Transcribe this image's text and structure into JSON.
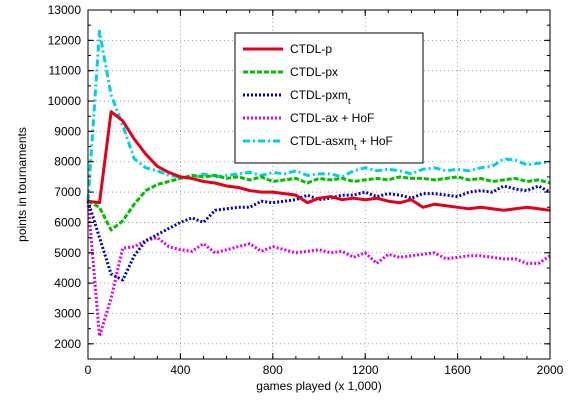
{
  "chart_data": {
    "type": "line",
    "xlabel": "games played (x 1,000)",
    "ylabel": "points in tournaments",
    "xlim": [
      0,
      2000
    ],
    "ylim": [
      1500,
      13000
    ],
    "xticks": [
      0,
      400,
      800,
      1200,
      1600,
      2000
    ],
    "yticks": [
      2000,
      3000,
      4000,
      5000,
      6000,
      7000,
      8000,
      9000,
      10000,
      11000,
      12000,
      13000
    ],
    "grid": true,
    "legend_position": "top-right",
    "series": [
      {
        "name": "CTDL-p",
        "legend_main": "CTDL-p",
        "legend_sub": "",
        "legend_tail": "",
        "color": "#e3001b",
        "dash": "solid",
        "x": [
          0,
          50,
          100,
          150,
          200,
          250,
          300,
          350,
          400,
          450,
          500,
          550,
          600,
          650,
          700,
          750,
          800,
          850,
          900,
          950,
          1000,
          1050,
          1100,
          1150,
          1200,
          1250,
          1300,
          1350,
          1400,
          1450,
          1500,
          1550,
          1600,
          1650,
          1700,
          1750,
          1800,
          1850,
          1900,
          1950,
          2000
        ],
        "y": [
          6700,
          6650,
          9650,
          9350,
          8750,
          8250,
          7850,
          7650,
          7500,
          7450,
          7350,
          7300,
          7200,
          7150,
          7050,
          7000,
          7000,
          6950,
          6900,
          6650,
          6800,
          6850,
          6750,
          6800,
          6750,
          6800,
          6700,
          6650,
          6750,
          6500,
          6600,
          6550,
          6500,
          6450,
          6500,
          6450,
          6400,
          6450,
          6500,
          6450,
          6400
        ]
      },
      {
        "name": "CTDL-px",
        "legend_main": "CTDL-px",
        "legend_sub": "",
        "legend_tail": "",
        "color": "#00c000",
        "dash": "dashed",
        "x": [
          0,
          50,
          100,
          150,
          200,
          250,
          300,
          350,
          400,
          450,
          500,
          550,
          600,
          650,
          700,
          750,
          800,
          850,
          900,
          950,
          1000,
          1050,
          1100,
          1150,
          1200,
          1250,
          1300,
          1350,
          1400,
          1450,
          1500,
          1550,
          1600,
          1650,
          1700,
          1750,
          1800,
          1850,
          1900,
          1950,
          2000
        ],
        "y": [
          6700,
          6500,
          5750,
          6050,
          6600,
          7050,
          7250,
          7350,
          7450,
          7550,
          7500,
          7550,
          7450,
          7500,
          7400,
          7500,
          7350,
          7400,
          7450,
          7300,
          7450,
          7400,
          7450,
          7350,
          7400,
          7450,
          7400,
          7500,
          7450,
          7450,
          7400,
          7450,
          7500,
          7400,
          7450,
          7350,
          7400,
          7450,
          7350,
          7400,
          7300
        ]
      },
      {
        "name": "CTDL-pxmt",
        "legend_main": "CTDL-pxm",
        "legend_sub": "t",
        "legend_tail": "",
        "color": "#0000c8",
        "dash": "dotted",
        "x": [
          0,
          50,
          100,
          150,
          200,
          250,
          300,
          350,
          400,
          450,
          500,
          550,
          600,
          650,
          700,
          750,
          800,
          850,
          900,
          950,
          1000,
          1050,
          1100,
          1150,
          1200,
          1250,
          1300,
          1350,
          1400,
          1450,
          1500,
          1550,
          1600,
          1650,
          1700,
          1750,
          1800,
          1850,
          1900,
          1950,
          2000
        ],
        "y": [
          6700,
          5500,
          4300,
          4100,
          4900,
          5400,
          5600,
          5800,
          6000,
          6150,
          6000,
          6400,
          6450,
          6500,
          6500,
          6700,
          6650,
          6700,
          6750,
          6900,
          6750,
          6800,
          6900,
          6900,
          7000,
          6850,
          6950,
          6900,
          6800,
          6950,
          6950,
          6900,
          6850,
          7000,
          7050,
          7000,
          7200,
          7100,
          7050,
          7200,
          7000
        ]
      },
      {
        "name": "CTDL-ax + HoF",
        "legend_main": "CTDL-ax + HoF",
        "legend_sub": "",
        "legend_tail": "",
        "color": "#e000e0",
        "dash": "dotted",
        "x": [
          0,
          50,
          100,
          150,
          200,
          250,
          300,
          350,
          400,
          450,
          500,
          550,
          600,
          650,
          700,
          750,
          800,
          850,
          900,
          950,
          1000,
          1050,
          1100,
          1150,
          1200,
          1250,
          1300,
          1350,
          1400,
          1450,
          1500,
          1550,
          1600,
          1650,
          1700,
          1750,
          1800,
          1850,
          1900,
          1950,
          2000
        ],
        "y": [
          6700,
          2250,
          3500,
          5150,
          5200,
          5400,
          5500,
          5200,
          5100,
          5050,
          5300,
          5000,
          5100,
          5200,
          5300,
          5050,
          5200,
          5100,
          5000,
          5050,
          5100,
          5000,
          5050,
          4850,
          5000,
          4650,
          4950,
          4850,
          4900,
          4950,
          5000,
          4800,
          4850,
          4900,
          4900,
          4850,
          4800,
          4800,
          4650,
          4650,
          4900
        ]
      },
      {
        "name": "CTDL-asxmt + HoF",
        "legend_main": "CTDL-asxm",
        "legend_sub": "t",
        "legend_tail": " + HoF",
        "color": "#00d0e0",
        "dash": "dashdot",
        "x": [
          0,
          50,
          100,
          150,
          200,
          250,
          300,
          350,
          400,
          450,
          500,
          550,
          600,
          650,
          700,
          750,
          800,
          850,
          900,
          950,
          1000,
          1050,
          1100,
          1150,
          1200,
          1250,
          1300,
          1350,
          1400,
          1450,
          1500,
          1550,
          1600,
          1650,
          1700,
          1750,
          1800,
          1850,
          1900,
          1950,
          2000
        ],
        "y": [
          6700,
          12300,
          10200,
          9200,
          8100,
          7800,
          7700,
          7550,
          7500,
          7450,
          7600,
          7500,
          7550,
          7600,
          7650,
          7550,
          7650,
          7600,
          7700,
          7550,
          7600,
          7600,
          7500,
          7700,
          7800,
          7700,
          7750,
          7700,
          7600,
          7750,
          7800,
          7700,
          7750,
          7700,
          7800,
          7850,
          8100,
          8050,
          7900,
          7950,
          8000
        ]
      }
    ]
  }
}
